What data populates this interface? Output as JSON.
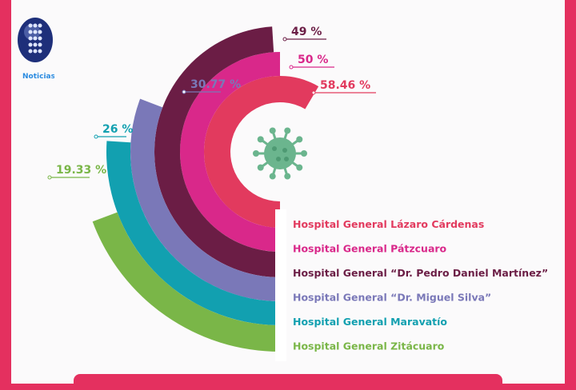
{
  "logo_text": "Noticias",
  "chart_data": {
    "type": "radial-bar",
    "unit": "%",
    "series": [
      {
        "name": "Hospital General Lázaro Cárdenas",
        "value": 58.46,
        "label": "58.46 %",
        "color": "#e23a5e"
      },
      {
        "name": "Hospital General Pátzcuaro",
        "value": 50,
        "label": "50 %",
        "color": "#d9288a"
      },
      {
        "name": "Hospital General “Dr. Pedro Daniel Martínez”",
        "value": 49,
        "label": "49 %",
        "color": "#6b1d45"
      },
      {
        "name": "Hospital General “Dr. Miguel Silva”",
        "value": 30.77,
        "label": "30.77 %",
        "color": "#7a78b8"
      },
      {
        "name": "Hospital General Maravatío",
        "value": 26,
        "label": "26 %",
        "color": "#12a0b0"
      },
      {
        "name": "Hospital General Zitácuaro",
        "value": 19.33,
        "label": "19.33 %",
        "color": "#7ab648"
      }
    ]
  }
}
